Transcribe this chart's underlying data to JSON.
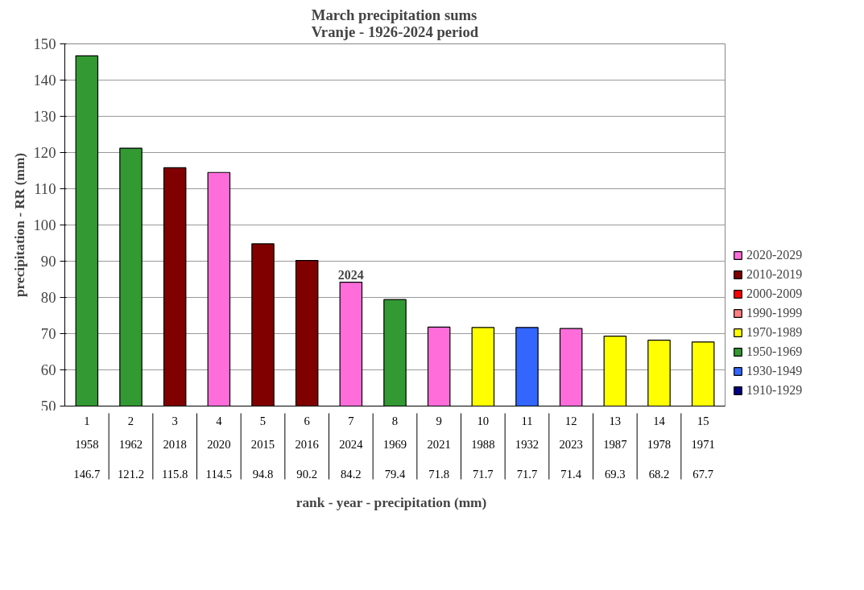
{
  "chart_data": {
    "type": "bar",
    "title": "March precipitation sums\nVranje - 1926-2024 period",
    "xlabel": "rank  - year -  precipitation (mm)",
    "ylabel": "precipitation - RR (mm)",
    "categories": [
      "1\n1958",
      "2\n1962",
      "3\n2018",
      "4\n2020",
      "5\n2015",
      "6\n2016",
      "7\n2024",
      "8\n1969",
      "9\n2021",
      "10\n1988",
      "11\n1932",
      "12\n2023",
      "13\n1987",
      "14\n1978",
      "15\n1971"
    ],
    "data_labels": true,
    "ylim": [
      50,
      150
    ],
    "yticks": [
      50,
      60,
      70,
      80,
      90,
      100,
      110,
      120,
      130,
      140,
      150
    ],
    "grid": "y",
    "legend": "right",
    "annotations": [
      {
        "text": "2024",
        "x": "7\n2024",
        "y": 84.2
      }
    ],
    "series": [
      {
        "values": [
          146.7,
          121.2,
          115.8,
          114.5,
          94.8,
          90.2,
          84.2,
          79.4,
          71.8,
          71.7,
          71.7,
          71.4,
          69.3,
          68.2,
          67.7
        ],
        "colors": [
          "#339933",
          "#339933",
          "#800000",
          "#ff6ddb",
          "#800000",
          "#800000",
          "#ff6ddb",
          "#339933",
          "#ff6ddb",
          "#ffff00",
          "#3366ff",
          "#ff6ddb",
          "#ffff00",
          "#ffff00",
          "#ffff00"
        ]
      },
      {
        "name": "2020-2029",
        "color": "#ff6ddb",
        "values": [
          null,
          null,
          null,
          null,
          null,
          null,
          null,
          null,
          null,
          null,
          null,
          null,
          null,
          null,
          null
        ]
      },
      {
        "name": "2010-2019",
        "color": "#800000",
        "values": [
          null,
          null,
          null,
          null,
          null,
          null,
          null,
          null,
          null,
          null,
          null,
          null,
          null,
          null,
          null
        ]
      },
      {
        "name": "2000-2009",
        "color": "#ff0000",
        "values": [
          null,
          null,
          null,
          null,
          null,
          null,
          null,
          null,
          null,
          null,
          null,
          null,
          null,
          null,
          null
        ]
      },
      {
        "name": "1990-1999",
        "color": "#ff8080",
        "values": [
          null,
          null,
          null,
          null,
          null,
          null,
          null,
          null,
          null,
          null,
          null,
          null,
          null,
          null,
          null
        ]
      },
      {
        "name": "1970-1989",
        "color": "#ffff00",
        "values": [
          null,
          null,
          null,
          null,
          null,
          null,
          null,
          null,
          null,
          null,
          null,
          null,
          null,
          null,
          null
        ]
      },
      {
        "name": "1950-1969",
        "color": "#339933",
        "values": [
          null,
          null,
          null,
          null,
          null,
          null,
          null,
          null,
          null,
          null,
          null,
          null,
          null,
          null,
          null
        ]
      },
      {
        "name": "1930-1949",
        "color": "#3366ff",
        "values": [
          null,
          null,
          null,
          null,
          null,
          null,
          null,
          null,
          null,
          null,
          null,
          null,
          null,
          null,
          null
        ]
      },
      {
        "name": "1910-1929",
        "color": "#000080",
        "values": [
          null,
          null,
          null,
          null,
          null,
          null,
          null,
          null,
          null,
          null,
          null,
          null,
          null,
          null,
          null
        ]
      }
    ]
  }
}
